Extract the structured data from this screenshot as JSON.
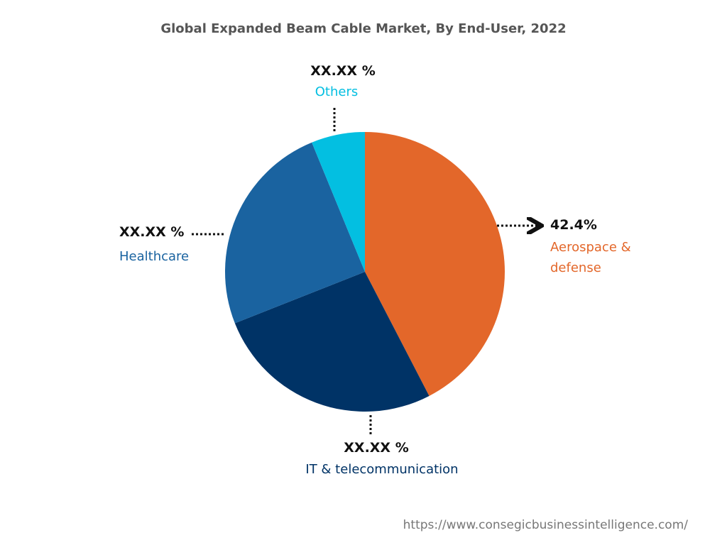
{
  "chart_data": {
    "type": "pie",
    "title": "Global Expanded Beam Cable Market, By End-User, 2022",
    "categories": [
      "Aerospace & defense",
      "IT & telecommunication",
      "Healthcare",
      "Others"
    ],
    "values": [
      42.4,
      26.6,
      24.8,
      6.2
    ],
    "value_labels": [
      "42.4%",
      "XX.XX %",
      "XX.XX %",
      "XX.XX %"
    ],
    "colors": [
      "#e3672a",
      "#003366",
      "#1a63a0",
      "#03bfe1"
    ]
  },
  "footer": {
    "source": "https://www.consegicbusinessintelligence.com/"
  }
}
